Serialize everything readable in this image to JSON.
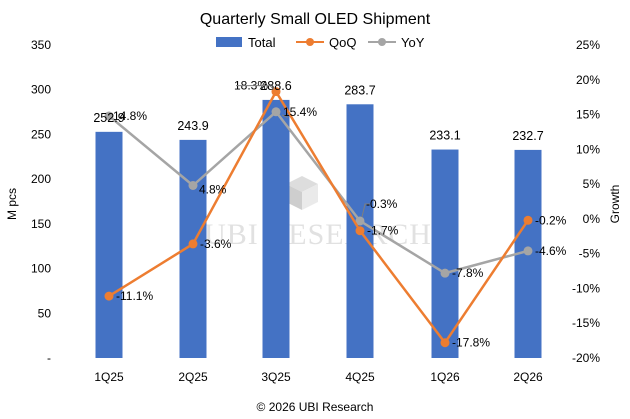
{
  "chart_data": {
    "type": "bar",
    "title": "Quarterly Small OLED Shipment",
    "categories": [
      "1Q25",
      "2Q25",
      "3Q25",
      "4Q25",
      "1Q26",
      "2Q26"
    ],
    "series": [
      {
        "name": "Total",
        "type": "bar",
        "axis": "left",
        "values": [
          252.9,
          243.9,
          288.6,
          283.7,
          233.1,
          232.7
        ],
        "color": "#4472C4"
      },
      {
        "name": "QoQ",
        "type": "line",
        "axis": "right",
        "values": [
          -11.1,
          -3.6,
          18.3,
          -1.7,
          -17.8,
          -0.2
        ],
        "labels": [
          "-11.1%",
          "-3.6%",
          "18.3%",
          "-1.7%",
          "-17.8%",
          "-0.2%"
        ],
        "color": "#ED7D31"
      },
      {
        "name": "YoY",
        "type": "line",
        "axis": "right",
        "values": [
          14.8,
          4.8,
          15.4,
          -0.3,
          -7.8,
          -4.6
        ],
        "labels": [
          "14.8%",
          "4.8%",
          "15.4%",
          "-0.3%",
          "-7.8%",
          "-4.6%"
        ],
        "color": "#A5A5A5"
      }
    ],
    "bar_labels": [
      "252.9",
      "243.9",
      "288.6",
      "283.7",
      "233.1",
      "232.7"
    ],
    "ylabel": "M pcs",
    "y2label": "Growth",
    "ylim": [
      0,
      350
    ],
    "y2lim": [
      -20,
      25
    ],
    "yticks": [
      "-",
      "50",
      "100",
      "150",
      "200",
      "250",
      "300",
      "350"
    ],
    "y2ticks": [
      "-20%",
      "-15%",
      "-10%",
      "-5%",
      "0%",
      "5%",
      "10%",
      "15%",
      "20%",
      "25%"
    ],
    "legend": "top-center",
    "grid": false,
    "watermark": "UBI RESEARCH",
    "credit": "© 2026 UBI Research"
  }
}
